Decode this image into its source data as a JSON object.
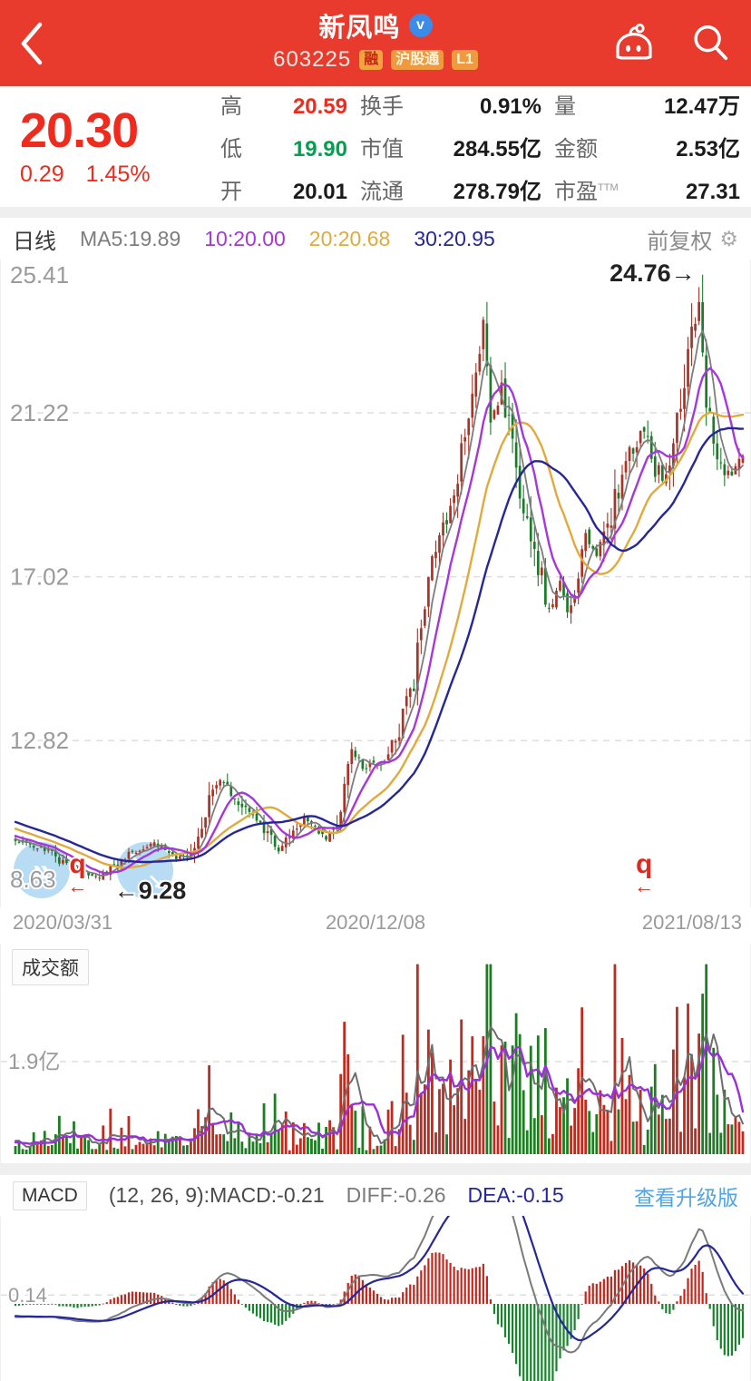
{
  "header": {
    "title": "新凤鸣",
    "verified_badge": "v",
    "code": "603225",
    "badges": [
      "融",
      "沪股通",
      "L1"
    ]
  },
  "quote": {
    "price": "20.30",
    "change": "0.29",
    "change_pct": "1.45%",
    "stats": [
      {
        "label": "高",
        "value": "20.59",
        "tone": "up"
      },
      {
        "label": "换手",
        "value": "0.91%",
        "tone": "plain"
      },
      {
        "label": "量",
        "value": "12.47万",
        "tone": "plain"
      },
      {
        "label": "低",
        "value": "19.90",
        "tone": "down"
      },
      {
        "label": "市值",
        "value": "284.55亿",
        "tone": "plain"
      },
      {
        "label": "金额",
        "value": "2.53亿",
        "tone": "plain"
      },
      {
        "label": "开",
        "value": "20.01",
        "tone": "plain"
      },
      {
        "label": "流通",
        "value": "278.79亿",
        "tone": "plain"
      },
      {
        "label": "市盈",
        "sup": "TTM",
        "value": "27.31",
        "tone": "plain"
      }
    ]
  },
  "toolbar": {
    "period": "日线",
    "ma5": "MA5:19.89",
    "ma10": "10:20.00",
    "ma20": "20:20.68",
    "ma30": "30:20.95",
    "adjust": "前复权",
    "gear_icon": "⚙"
  },
  "volume_pane": {
    "title": "成交额",
    "grid_label": "1.9亿"
  },
  "macd_pane": {
    "name": "MACD",
    "params": "(12, 26, 9):MACD:-0.21",
    "diff": "DIFF:-0.26",
    "dea": "DEA:-0.15",
    "upgrade_link": "查看升级版",
    "grid_label": "0.14"
  },
  "dates": {
    "left": "2020/03/31",
    "mid": "2020/12/08",
    "right": "2021/08/13"
  },
  "chart_data": {
    "type": "candlestick",
    "symbol": "新凤鸣 603225",
    "period": "日线",
    "adjust": "前复权",
    "x_tick_labels": [
      "2020/03/31",
      "2020/12/08",
      "2021/08/13"
    ],
    "y_tick_labels": [
      "25.41",
      "21.22",
      "17.02",
      "12.82",
      "8.63"
    ],
    "price_gridlines": [
      21.22,
      17.02,
      12.82
    ],
    "price_axis_range": [
      8.63,
      25.41
    ],
    "price_high_marker": 24.76,
    "price_low_marker": 9.28,
    "annotations": {
      "high": "24.76→",
      "low": "←9.28",
      "ex_dividend": "q",
      "ex_dividend_arrow": "←"
    },
    "ma_values_current": {
      "ma5": 19.89,
      "ma10": 20.0,
      "ma20": 20.68,
      "ma30": 20.95
    },
    "macd_current": {
      "macd": -0.21,
      "diff": -0.26,
      "dea": -0.15
    },
    "volume_gridline_value_yi": 1.9,
    "macd_gridline_value": 0.14,
    "days": 200,
    "ex_dividend_days": [
      17,
      172
    ],
    "preroll_anchors": [
      [
        -34,
        11.4
      ],
      [
        -20,
        10.9
      ],
      [
        -8,
        10.5
      ]
    ],
    "close_anchors": [
      [
        0,
        10.25
      ],
      [
        9,
        10.0
      ],
      [
        14,
        9.6
      ],
      [
        22,
        9.3
      ],
      [
        31,
        9.9
      ],
      [
        38,
        10.15
      ],
      [
        43,
        9.85
      ],
      [
        47,
        9.8
      ],
      [
        56,
        11.9
      ],
      [
        62,
        11.1
      ],
      [
        67,
        10.7
      ],
      [
        72,
        9.95
      ],
      [
        79,
        10.85
      ],
      [
        85,
        10.3
      ],
      [
        88,
        10.6
      ],
      [
        92,
        12.65
      ],
      [
        95,
        12.1
      ],
      [
        101,
        12.3
      ],
      [
        104,
        12.8
      ],
      [
        109,
        14.3
      ],
      [
        113,
        17.2
      ],
      [
        116,
        18.1
      ],
      [
        120,
        18.8
      ],
      [
        122,
        20.4
      ],
      [
        126,
        22.3
      ],
      [
        128,
        23.4
      ],
      [
        130,
        21.0
      ],
      [
        133,
        21.8
      ],
      [
        136,
        20.2
      ],
      [
        140,
        18.2
      ],
      [
        143,
        17.3
      ],
      [
        146,
        16.2
      ],
      [
        149,
        16.8
      ],
      [
        151,
        16.1
      ],
      [
        156,
        18.0
      ],
      [
        159,
        17.5
      ],
      [
        163,
        18.6
      ],
      [
        166,
        19.6
      ],
      [
        169,
        20.3
      ],
      [
        172,
        20.9
      ],
      [
        175,
        19.8
      ],
      [
        178,
        19.5
      ],
      [
        182,
        21.5
      ],
      [
        184,
        22.8
      ],
      [
        187,
        23.8
      ],
      [
        189,
        21.5
      ],
      [
        192,
        20.3
      ],
      [
        195,
        19.6
      ],
      [
        197,
        19.8
      ],
      [
        199,
        20.3
      ]
    ],
    "colors": {
      "up": "#ab3226",
      "down": "#1d7a2b",
      "vol_up": "#c32a1e",
      "vol_down": "#1e7d23",
      "macd_up": "#cc2218",
      "macd_down": "#17842b",
      "ma5": "#7d7d7d",
      "ma10": "#a636dd",
      "ma20": "#e2aa3c",
      "ma30": "#26269b",
      "vol_ma5": "#6e6e6e",
      "vol_ma10": "#9b2fd9",
      "diff": "#7a7a7a",
      "dea": "#26269b",
      "grid": "#dedede",
      "axis_label": "#9a9a9a",
      "marker_red": "#e02a1e",
      "annotation": "#222222",
      "accent_red": "#f02a1d",
      "accent_green": "#00a14e",
      "header_red": "#e93a2e",
      "link_blue": "#4fa5e8"
    }
  }
}
